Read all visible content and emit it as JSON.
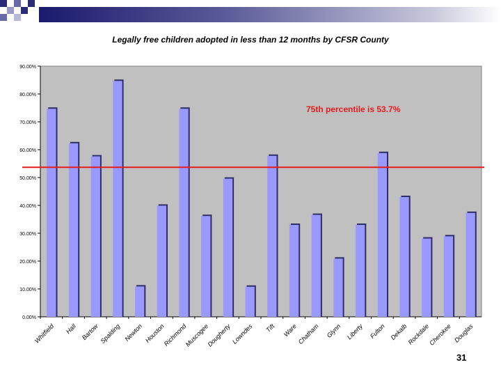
{
  "slide": {
    "page_number": "31"
  },
  "chart_data": {
    "type": "bar",
    "title": "Legally free children adopted in less than 12 months by CFSR County",
    "xlabel": "",
    "ylabel": "",
    "ylim": [
      0,
      90
    ],
    "ytick_labels": [
      "0.00%",
      "10.00%",
      "20.00%",
      "30.00%",
      "40.00%",
      "50.00%",
      "60.00%",
      "70.00%",
      "80.00%",
      "90.00%"
    ],
    "categories": [
      "Whitfield",
      "Hall",
      "Bartow",
      "Spalding",
      "Newton",
      "Houston",
      "Richmond",
      "Muscogee",
      "Dougherty",
      "Lowndes",
      "Tift",
      "Ware",
      "Chatham",
      "Glynn",
      "Liberty",
      "Fulton",
      "Dekalb",
      "Rockdale",
      "Cherokee",
      "Douglas"
    ],
    "values": [
      74.7,
      62.3,
      57.6,
      84.7,
      10.9,
      39.9,
      74.7,
      36.2,
      49.6,
      10.8,
      57.8,
      33.0,
      36.6,
      20.9,
      33.0,
      58.8,
      43.0,
      28.1,
      28.9,
      37.3
    ],
    "reference_line": {
      "value": 53.7,
      "label": "75th percentile is 53.7%",
      "color": "#e31b1b"
    },
    "colors": {
      "bar": "#9999ff",
      "bar_shadow": "#2e2e66",
      "plot_bg": "#c0c0c0",
      "axis": "#000000"
    },
    "grid": false,
    "legend": "none"
  }
}
